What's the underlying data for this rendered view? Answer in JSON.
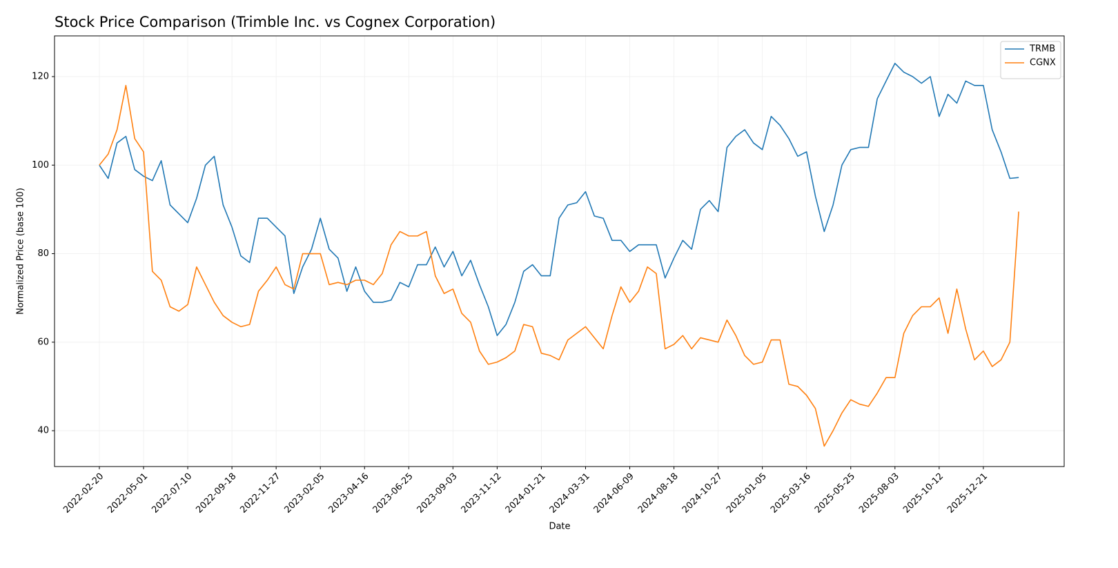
{
  "chart_data": {
    "type": "line",
    "title": "Stock Price Comparison (Trimble Inc. vs Cognex Corporation)",
    "x_label": "Date",
    "y_label": "Normalized Price (base 100)",
    "x": [
      "2022-02-20",
      "2022-03-06",
      "2022-03-20",
      "2022-04-03",
      "2022-04-17",
      "2022-05-01",
      "2022-05-15",
      "2022-05-29",
      "2022-06-12",
      "2022-06-26",
      "2022-07-10",
      "2022-07-24",
      "2022-08-07",
      "2022-08-21",
      "2022-09-04",
      "2022-09-18",
      "2022-10-02",
      "2022-10-16",
      "2022-10-30",
      "2022-11-13",
      "2022-11-27",
      "2022-12-11",
      "2022-12-25",
      "2023-01-08",
      "2023-01-22",
      "2023-02-05",
      "2023-02-19",
      "2023-03-05",
      "2023-03-19",
      "2023-04-02",
      "2023-04-16",
      "2023-04-30",
      "2023-05-14",
      "2023-05-28",
      "2023-06-11",
      "2023-06-25",
      "2023-07-09",
      "2023-07-23",
      "2023-08-06",
      "2023-08-20",
      "2023-09-03",
      "2023-09-17",
      "2023-10-01",
      "2023-10-15",
      "2023-10-29",
      "2023-11-12",
      "2023-11-26",
      "2023-12-10",
      "2023-12-24",
      "2024-01-07",
      "2024-01-21",
      "2024-02-04",
      "2024-02-18",
      "2024-03-03",
      "2024-03-17",
      "2024-03-31",
      "2024-04-14",
      "2024-04-28",
      "2024-05-12",
      "2024-05-26",
      "2024-06-09",
      "2024-06-23",
      "2024-07-07",
      "2024-07-21",
      "2024-08-04",
      "2024-08-18",
      "2024-09-01",
      "2024-09-15",
      "2024-09-29",
      "2024-10-13",
      "2024-10-27",
      "2024-11-10",
      "2024-11-24",
      "2024-12-08",
      "2024-12-22",
      "2025-01-05",
      "2025-01-19",
      "2025-02-02",
      "2025-02-16",
      "2025-03-02",
      "2025-03-16",
      "2025-03-30",
      "2025-04-13",
      "2025-04-27",
      "2025-05-11",
      "2025-05-25",
      "2025-06-08",
      "2025-06-22",
      "2025-07-06",
      "2025-07-20",
      "2025-08-03",
      "2025-08-17",
      "2025-08-31",
      "2025-09-14",
      "2025-09-28",
      "2025-10-12",
      "2025-10-26",
      "2025-11-09",
      "2025-11-23",
      "2025-12-07",
      "2025-12-21",
      "2026-01-04",
      "2026-01-18",
      "2026-02-01",
      "2026-02-15"
    ],
    "series": [
      {
        "name": "TRMB",
        "color": "#1f77b4",
        "values": [
          100,
          97,
          105,
          106.5,
          99,
          97.5,
          96.5,
          101,
          91,
          89,
          87,
          92.5,
          100,
          102,
          91,
          86,
          79.5,
          78,
          88,
          88,
          86,
          84,
          71,
          77,
          81,
          88,
          81,
          79,
          71.5,
          77,
          71.5,
          69,
          69,
          69.5,
          73.5,
          72.5,
          77.5,
          77.5,
          81.5,
          77,
          80.5,
          75,
          78.5,
          73,
          68,
          61.5,
          64,
          69,
          76,
          77.5,
          75,
          75,
          88,
          91,
          91.5,
          94,
          88.5,
          88,
          83,
          83,
          80.5,
          82,
          82,
          82,
          74.5,
          79,
          83,
          81,
          90,
          92,
          89.5,
          104,
          106.5,
          108,
          105,
          103.5,
          111,
          109,
          106,
          102,
          103,
          93,
          85,
          91,
          100,
          103.5,
          104,
          104,
          115,
          119,
          123,
          121,
          120,
          118.5,
          120,
          111,
          116,
          114,
          119,
          118,
          118,
          108,
          103,
          97,
          97.2
        ]
      },
      {
        "name": "CGNX",
        "color": "#ff7f0e",
        "values": [
          100,
          102.5,
          108,
          118,
          106,
          103,
          76,
          74,
          68,
          67,
          68.5,
          77,
          73,
          69,
          66,
          64.5,
          63.5,
          64,
          71.5,
          74,
          77,
          73,
          72,
          80,
          80,
          80,
          73,
          73.5,
          73,
          74,
          74,
          73,
          75.5,
          82,
          85,
          84,
          84,
          85,
          75,
          71,
          72,
          66.5,
          64.5,
          58,
          55,
          55.5,
          56.5,
          58,
          64,
          63.5,
          57.5,
          57,
          56,
          60.5,
          62,
          63.5,
          61,
          58.5,
          66,
          72.5,
          69,
          71.5,
          77,
          75.5,
          58.5,
          59.5,
          61.5,
          58.5,
          61,
          60.5,
          60,
          65,
          61.5,
          57,
          55,
          55.5,
          60.5,
          60.5,
          50.5,
          50,
          48,
          45,
          36.5,
          40,
          44,
          47,
          46,
          45.5,
          48.5,
          52,
          52,
          62,
          66,
          68,
          68,
          70,
          62,
          72,
          63,
          56,
          58,
          54.5,
          56,
          60,
          89.5
        ]
      }
    ],
    "xlim": [
      "2021-12-11",
      "2026-04-28"
    ],
    "xticks": [
      "2022-02-20",
      "2022-05-01",
      "2022-07-10",
      "2022-09-18",
      "2022-11-27",
      "2023-02-05",
      "2023-04-16",
      "2023-06-25",
      "2023-09-03",
      "2023-11-12",
      "2024-01-21",
      "2024-03-31",
      "2024-06-09",
      "2024-08-18",
      "2024-10-27",
      "2025-01-05",
      "2025-03-16",
      "2025-05-25",
      "2025-08-03",
      "2025-10-12",
      "2025-12-21"
    ],
    "ylim": [
      31.9,
      129.2
    ],
    "yticks": [
      40,
      60,
      80,
      100,
      120
    ],
    "grid": true,
    "legend": "upper right"
  }
}
